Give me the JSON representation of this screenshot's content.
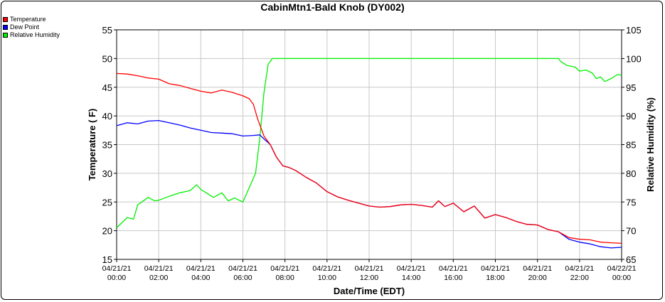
{
  "chart_data": {
    "type": "line",
    "title": "CabinMtn1-Bald Knob (DY002)",
    "xlabel": "Date/Time (EDT)",
    "ylabel": "Temperature ( F)",
    "y2label": "Relative Humidity (%)",
    "xlim": [
      0,
      24
    ],
    "ylim": [
      15,
      55
    ],
    "y2lim": [
      65,
      105
    ],
    "yticks": [
      15,
      20,
      25,
      30,
      35,
      40,
      45,
      50,
      55
    ],
    "y2ticks": [
      65,
      70,
      75,
      80,
      85,
      90,
      95,
      100,
      105
    ],
    "xticks": [
      {
        "date": "04/21/21",
        "time": "00:00"
      },
      {
        "date": "04/21/21",
        "time": "02:00"
      },
      {
        "date": "04/21/21",
        "time": "04:00"
      },
      {
        "date": "04/21/21",
        "time": "06:00"
      },
      {
        "date": "04/21/21",
        "time": "08:00"
      },
      {
        "date": "04/21/21",
        "time": "10:00"
      },
      {
        "date": "04/21/21",
        "time": "12:00"
      },
      {
        "date": "04/21/21",
        "time": "14:00"
      },
      {
        "date": "04/21/21",
        "time": "16:00"
      },
      {
        "date": "04/21/21",
        "time": "18:00"
      },
      {
        "date": "04/21/21",
        "time": "20:00"
      },
      {
        "date": "04/21/21",
        "time": "22:00"
      },
      {
        "date": "04/22/21",
        "time": "00:00"
      }
    ],
    "grid": true,
    "legend_position": "top-left",
    "series": [
      {
        "name": "Temperature",
        "color": "#ff0000",
        "axis": "left",
        "points": [
          [
            0,
            47.4
          ],
          [
            0.5,
            47.3
          ],
          [
            1,
            47.0
          ],
          [
            1.5,
            46.6
          ],
          [
            2,
            46.4
          ],
          [
            2.5,
            45.6
          ],
          [
            3,
            45.3
          ],
          [
            3.5,
            44.8
          ],
          [
            4,
            44.3
          ],
          [
            4.5,
            44.0
          ],
          [
            5,
            44.5
          ],
          [
            5.5,
            44.1
          ],
          [
            6,
            43.5
          ],
          [
            6.3,
            43.0
          ],
          [
            6.5,
            42.0
          ],
          [
            6.7,
            39.5
          ],
          [
            7,
            36.5
          ],
          [
            7.3,
            35.0
          ],
          [
            7.6,
            32.8
          ],
          [
            7.9,
            31.3
          ],
          [
            8.2,
            31.0
          ],
          [
            8.5,
            30.5
          ],
          [
            9,
            29.3
          ],
          [
            9.5,
            28.3
          ],
          [
            10,
            26.8
          ],
          [
            10.5,
            25.9
          ],
          [
            11,
            25.3
          ],
          [
            11.5,
            24.8
          ],
          [
            12,
            24.3
          ],
          [
            12.5,
            24.1
          ],
          [
            13,
            24.2
          ],
          [
            13.5,
            24.5
          ],
          [
            14,
            24.6
          ],
          [
            14.5,
            24.4
          ],
          [
            15,
            24.1
          ],
          [
            15.3,
            25.2
          ],
          [
            15.6,
            24.2
          ],
          [
            16,
            24.8
          ],
          [
            16.5,
            23.3
          ],
          [
            17,
            24.3
          ],
          [
            17.5,
            22.2
          ],
          [
            18,
            22.8
          ],
          [
            18.5,
            22.3
          ],
          [
            19,
            21.6
          ],
          [
            19.5,
            21.1
          ],
          [
            20,
            21.0
          ],
          [
            20.5,
            20.2
          ],
          [
            21,
            19.8
          ],
          [
            21.5,
            18.8
          ],
          [
            22,
            18.5
          ],
          [
            22.5,
            18.4
          ],
          [
            23,
            18.0
          ],
          [
            23.5,
            17.9
          ],
          [
            24,
            17.8
          ]
        ]
      },
      {
        "name": "Dew Point",
        "color": "#0000ff",
        "axis": "left",
        "points": [
          [
            0,
            38.3
          ],
          [
            0.5,
            38.8
          ],
          [
            1,
            38.6
          ],
          [
            1.5,
            39.1
          ],
          [
            2,
            39.2
          ],
          [
            2.5,
            38.8
          ],
          [
            3,
            38.4
          ],
          [
            3.5,
            37.9
          ],
          [
            4,
            37.5
          ],
          [
            4.5,
            37.1
          ],
          [
            5,
            37.0
          ],
          [
            5.5,
            36.9
          ],
          [
            6,
            36.5
          ],
          [
            6.5,
            36.6
          ],
          [
            6.8,
            36.7
          ],
          [
            7,
            36.0
          ],
          [
            7.3,
            35.0
          ],
          [
            7.6,
            32.8
          ],
          [
            7.9,
            31.3
          ],
          [
            8.2,
            31.0
          ],
          [
            8.5,
            30.5
          ],
          [
            9,
            29.3
          ],
          [
            9.5,
            28.3
          ],
          [
            10,
            26.8
          ],
          [
            10.5,
            25.9
          ],
          [
            11,
            25.3
          ],
          [
            11.5,
            24.8
          ],
          [
            12,
            24.3
          ],
          [
            12.5,
            24.1
          ],
          [
            13,
            24.2
          ],
          [
            13.5,
            24.5
          ],
          [
            14,
            24.6
          ],
          [
            14.5,
            24.4
          ],
          [
            15,
            24.1
          ],
          [
            15.3,
            25.2
          ],
          [
            15.6,
            24.2
          ],
          [
            16,
            24.8
          ],
          [
            16.5,
            23.3
          ],
          [
            17,
            24.3
          ],
          [
            17.5,
            22.2
          ],
          [
            18,
            22.8
          ],
          [
            18.5,
            22.3
          ],
          [
            19,
            21.6
          ],
          [
            19.5,
            21.1
          ],
          [
            20,
            21.0
          ],
          [
            20.5,
            20.2
          ],
          [
            21,
            19.8
          ],
          [
            21.5,
            18.5
          ],
          [
            22,
            18.0
          ],
          [
            22.5,
            17.7
          ],
          [
            23,
            17.2
          ],
          [
            23.5,
            17.0
          ],
          [
            24,
            17.1
          ]
        ]
      },
      {
        "name": "Relative Humidity",
        "color": "#00ee00",
        "axis": "right",
        "points": [
          [
            0,
            70.5
          ],
          [
            0.5,
            72.3
          ],
          [
            0.8,
            72.0
          ],
          [
            1,
            74.5
          ],
          [
            1.5,
            75.8
          ],
          [
            1.8,
            75.2
          ],
          [
            2,
            75.3
          ],
          [
            2.5,
            76.0
          ],
          [
            3,
            76.6
          ],
          [
            3.5,
            77.0
          ],
          [
            3.8,
            78.0
          ],
          [
            4,
            77.2
          ],
          [
            4.3,
            76.5
          ],
          [
            4.6,
            75.8
          ],
          [
            5,
            76.6
          ],
          [
            5.3,
            75.2
          ],
          [
            5.6,
            75.7
          ],
          [
            6,
            75.0
          ],
          [
            6.3,
            77.5
          ],
          [
            6.6,
            80.0
          ],
          [
            6.8,
            86.0
          ],
          [
            7,
            94.0
          ],
          [
            7.2,
            99.0
          ],
          [
            7.4,
            100.0
          ],
          [
            12,
            100.0
          ],
          [
            16,
            100.0
          ],
          [
            21,
            100.0
          ],
          [
            21.1,
            99.5
          ],
          [
            21.4,
            98.8
          ],
          [
            21.8,
            98.5
          ],
          [
            22,
            97.8
          ],
          [
            22.3,
            98.0
          ],
          [
            22.6,
            97.5
          ],
          [
            22.8,
            96.5
          ],
          [
            23,
            96.8
          ],
          [
            23.2,
            96.0
          ],
          [
            23.5,
            96.5
          ],
          [
            23.8,
            97.2
          ],
          [
            24,
            97.1
          ]
        ]
      }
    ]
  }
}
